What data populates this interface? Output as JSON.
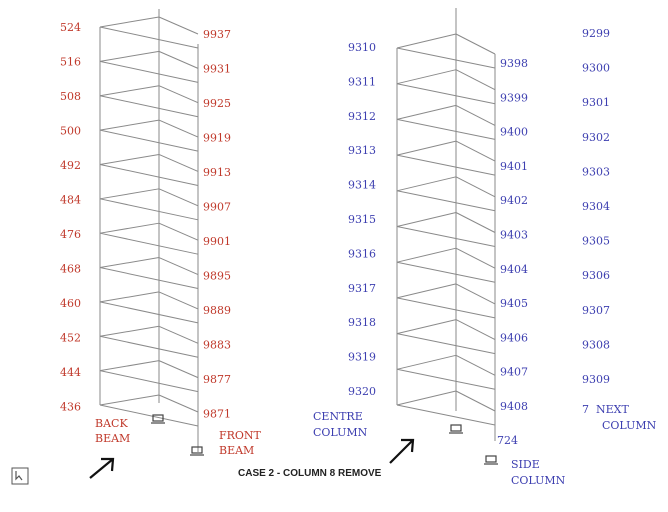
{
  "left_frame": {
    "back_nodes": [
      "524",
      "516",
      "508",
      "500",
      "492",
      "484",
      "476",
      "468",
      "460",
      "452",
      "444",
      "436"
    ],
    "front_nodes": [
      "9937",
      "9931",
      "9925",
      "9919",
      "9913",
      "9907",
      "9901",
      "9895",
      "9889",
      "9883",
      "9877",
      "9871"
    ],
    "back_label": [
      "BACK",
      "BEAM"
    ],
    "front_label": [
      "FRONT",
      "BEAM"
    ]
  },
  "right_frame": {
    "centre_nodes": [
      "9310",
      "9311",
      "9312",
      "9313",
      "9314",
      "9315",
      "9316",
      "9317",
      "9318",
      "9319",
      "9320"
    ],
    "mid_nodes": [
      "9398",
      "9399",
      "9400",
      "9401",
      "9402",
      "9403",
      "9404",
      "9405",
      "9406",
      "9407",
      "9408"
    ],
    "side_nodes": [
      "9299",
      "9300",
      "9301",
      "9302",
      "9303",
      "9304",
      "9305",
      "9306",
      "9307",
      "9308",
      "9309"
    ],
    "centre_label": [
      "CENTRE",
      "COLUMN"
    ],
    "next_label": [
      "7  NEXT",
      "COLUMN"
    ],
    "side_node": "724",
    "side_label": [
      "SIDE",
      "COLUMN"
    ]
  },
  "caption": "CASE 2 - COLUMN 8 REMOVE",
  "colors": {
    "left": "#c0392b",
    "right": "#3d3fb0"
  },
  "icons": [
    "support-icon",
    "arrow-icon",
    "cursor-icon"
  ]
}
